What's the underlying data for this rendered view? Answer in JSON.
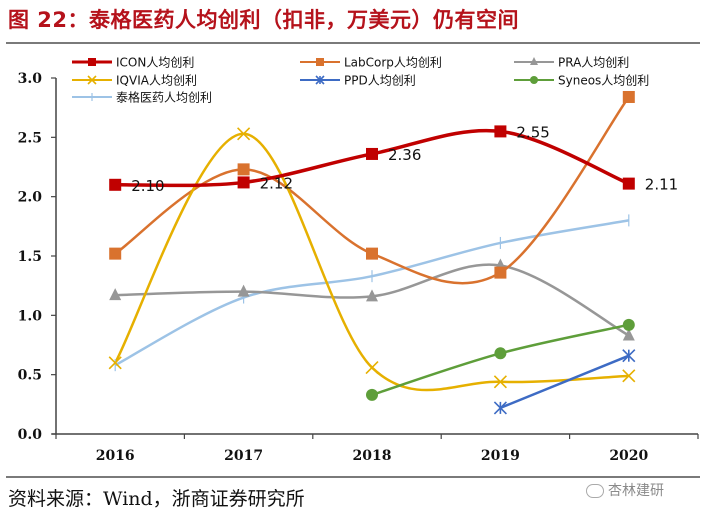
{
  "header": {
    "title": "图 22：泰格医药人均创利（扣非，万美元）仍有空间"
  },
  "footer": {
    "source": "资料来源：Wind，浙商证券研究所",
    "watermark": "杏林建研"
  },
  "chart_data": {
    "type": "line",
    "title": "图 22：泰格医药人均创利（扣非，万美元）仍有空间",
    "xlabel": "",
    "ylabel": "",
    "categories": [
      "2016",
      "2017",
      "2018",
      "2019",
      "2020"
    ],
    "ylim": [
      0,
      3.0
    ],
    "yticks": [
      "0.0",
      "0.5",
      "1.0",
      "1.5",
      "2.0",
      "2.5",
      "3.0"
    ],
    "grid": false,
    "legend_position": "top",
    "series": [
      {
        "name": "ICON人均创利",
        "color": "#c00000",
        "marker": "square",
        "values": [
          2.1,
          2.12,
          2.36,
          2.55,
          2.11
        ],
        "labels": [
          "2.10",
          "2.12",
          "2.36",
          "2.55",
          "2.11"
        ]
      },
      {
        "name": "LabCorp人均创利",
        "color": "#d9722e",
        "marker": "square",
        "values": [
          1.52,
          2.23,
          1.52,
          1.36,
          2.84
        ]
      },
      {
        "name": "PRA人均创利",
        "color": "#979797",
        "marker": "triangle",
        "values": [
          1.17,
          1.2,
          1.16,
          1.42,
          0.83
        ]
      },
      {
        "name": "IQVIA人均创利",
        "color": "#e6b000",
        "marker": "x",
        "values": [
          0.6,
          2.53,
          0.56,
          0.44,
          0.49
        ]
      },
      {
        "name": "PPD人均创利",
        "color": "#3d6bc4",
        "marker": "star",
        "values": [
          null,
          null,
          null,
          0.22,
          0.66
        ]
      },
      {
        "name": "Syneos人均创利",
        "color": "#5e9e3a",
        "marker": "circle",
        "values": [
          null,
          null,
          0.33,
          0.68,
          0.92
        ]
      },
      {
        "name": "泰格医药人均创利",
        "color": "#9dc3e6",
        "marker": "plus",
        "values": [
          0.58,
          1.15,
          1.33,
          1.61,
          1.8
        ]
      }
    ]
  }
}
